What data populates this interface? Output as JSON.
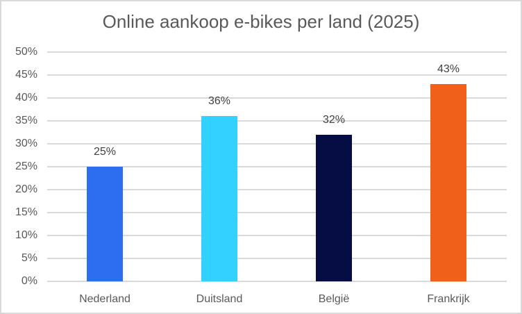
{
  "chart_data": {
    "type": "bar",
    "title": "Online aankoop e-bikes per land (2025)",
    "categories": [
      "Nederland",
      "Duitsland",
      "België",
      "Frankrijk"
    ],
    "values": [
      25,
      36,
      32,
      43
    ],
    "value_labels": [
      "25%",
      "36%",
      "32%",
      "43%"
    ],
    "colors": [
      "#2d6ef0",
      "#33d1ff",
      "#060c44",
      "#f0601a"
    ],
    "xlabel": "",
    "ylabel": "",
    "ylim": [
      0,
      50
    ],
    "yticks": [
      "0%",
      "5%",
      "10%",
      "15%",
      "20%",
      "25%",
      "30%",
      "35%",
      "40%",
      "45%",
      "50%"
    ],
    "grid": true,
    "legend": "none"
  }
}
